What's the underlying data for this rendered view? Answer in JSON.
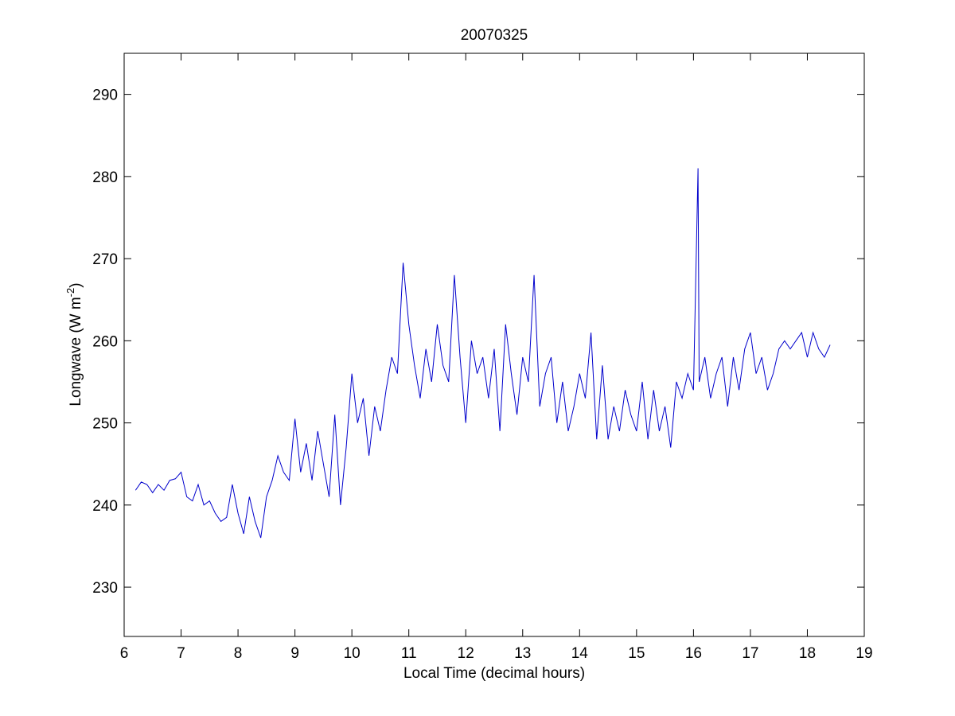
{
  "chart_data": {
    "type": "line",
    "title": "20070325",
    "x_label": "Local Time (decimal hours)",
    "y_label": {
      "text": "Longwave (W m",
      "superscript": "-2",
      "suffix": ")"
    },
    "xlim": [
      6,
      19
    ],
    "xticks": [
      6,
      7,
      8,
      9,
      10,
      11,
      12,
      13,
      14,
      15,
      16,
      17,
      18,
      19
    ],
    "ylim": [
      224,
      295
    ],
    "yticks": [
      230,
      240,
      250,
      260,
      270,
      280,
      290
    ],
    "grid": false,
    "series": [
      {
        "name": "Longwave",
        "color": "#0000cc",
        "x": [
          6.2,
          6.3,
          6.4,
          6.5,
          6.6,
          6.7,
          6.8,
          6.9,
          7.0,
          7.1,
          7.2,
          7.3,
          7.4,
          7.5,
          7.6,
          7.7,
          7.8,
          7.9,
          8.0,
          8.1,
          8.2,
          8.3,
          8.4,
          8.5,
          8.6,
          8.7,
          8.8,
          8.9,
          9.0,
          9.1,
          9.2,
          9.3,
          9.4,
          9.5,
          9.6,
          9.7,
          9.8,
          9.9,
          10.0,
          10.1,
          10.2,
          10.3,
          10.4,
          10.5,
          10.6,
          10.7,
          10.8,
          10.9,
          11.0,
          11.1,
          11.2,
          11.3,
          11.4,
          11.5,
          11.6,
          11.7,
          11.8,
          11.9,
          12.0,
          12.1,
          12.2,
          12.3,
          12.4,
          12.5,
          12.6,
          12.7,
          12.8,
          12.9,
          13.0,
          13.1,
          13.2,
          13.3,
          13.4,
          13.5,
          13.6,
          13.7,
          13.8,
          13.9,
          14.0,
          14.1,
          14.2,
          14.3,
          14.4,
          14.5,
          14.6,
          14.7,
          14.8,
          14.9,
          15.0,
          15.1,
          15.2,
          15.3,
          15.4,
          15.5,
          15.6,
          15.7,
          15.8,
          15.9,
          16.0,
          16.08,
          16.1,
          16.2,
          16.3,
          16.4,
          16.5,
          16.6,
          16.7,
          16.8,
          16.9,
          17.0,
          17.1,
          17.2,
          17.3,
          17.4,
          17.5,
          17.6,
          17.7,
          17.8,
          17.9,
          18.0,
          18.1,
          18.2,
          18.3,
          18.4
        ],
        "values": [
          241.8,
          242.8,
          242.5,
          241.5,
          242.5,
          241.8,
          243,
          243.2,
          244,
          241,
          240.5,
          242.5,
          240,
          240.5,
          239,
          238,
          238.5,
          242.5,
          239,
          236.5,
          241,
          238,
          236,
          241,
          243,
          246,
          244,
          243,
          250.5,
          244,
          247.5,
          243,
          249,
          245,
          241,
          251,
          240,
          247,
          256,
          250,
          253,
          246,
          252,
          249,
          254,
          258,
          256,
          269.5,
          262,
          257,
          253,
          259,
          255,
          262,
          257,
          255,
          268,
          258,
          250,
          260,
          256,
          258,
          253,
          259,
          249,
          262,
          256,
          251,
          258,
          255,
          268,
          252,
          256,
          258,
          250,
          255,
          249,
          252,
          256,
          253,
          261,
          248,
          257,
          248,
          252,
          249,
          254,
          251,
          249,
          255,
          248,
          254,
          249,
          252,
          247,
          255,
          253,
          256,
          254,
          281,
          255,
          258,
          253,
          256,
          258,
          252,
          258,
          254,
          259,
          261,
          256,
          258,
          254,
          256,
          259,
          260,
          259,
          260,
          261,
          258,
          261,
          259,
          258,
          259.5
        ]
      }
    ]
  }
}
